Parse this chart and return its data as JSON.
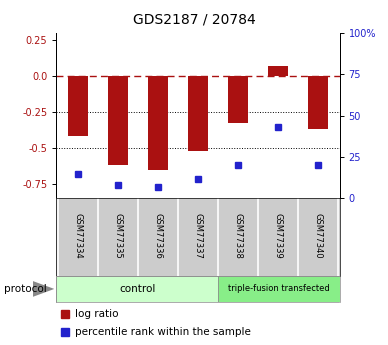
{
  "title": "GDS2187 / 20784",
  "samples": [
    "GSM77334",
    "GSM77335",
    "GSM77336",
    "GSM77337",
    "GSM77338",
    "GSM77339",
    "GSM77340"
  ],
  "log_ratio": [
    -0.42,
    -0.62,
    -0.65,
    -0.52,
    -0.33,
    0.07,
    -0.37
  ],
  "percentile_rank": [
    15,
    8,
    7,
    12,
    20,
    43,
    20
  ],
  "ctrl_count": 4,
  "triple_count": 3,
  "ctrl_label": "control",
  "triple_label": "triple-fusion transfected",
  "protocol_label": "protocol",
  "bar_color": "#aa1111",
  "dot_color": "#2222cc",
  "ctrl_color": "#ccffcc",
  "triple_color": "#88ee88",
  "xtick_bg": "#cccccc",
  "ylim_left": [
    -0.85,
    0.3
  ],
  "ylim_right": [
    0,
    100
  ],
  "yticks_left": [
    0.25,
    0.0,
    -0.25,
    -0.5,
    -0.75
  ],
  "yticks_right": [
    0,
    25,
    50,
    75,
    100
  ],
  "hline_y": 0,
  "hlines_dotted": [
    -0.25,
    -0.5
  ],
  "background_color": "#ffffff",
  "title_fontsize": 10,
  "tick_fontsize": 7,
  "label_fontsize": 7,
  "legend_fontsize": 7.5,
  "bar_width": 0.5
}
